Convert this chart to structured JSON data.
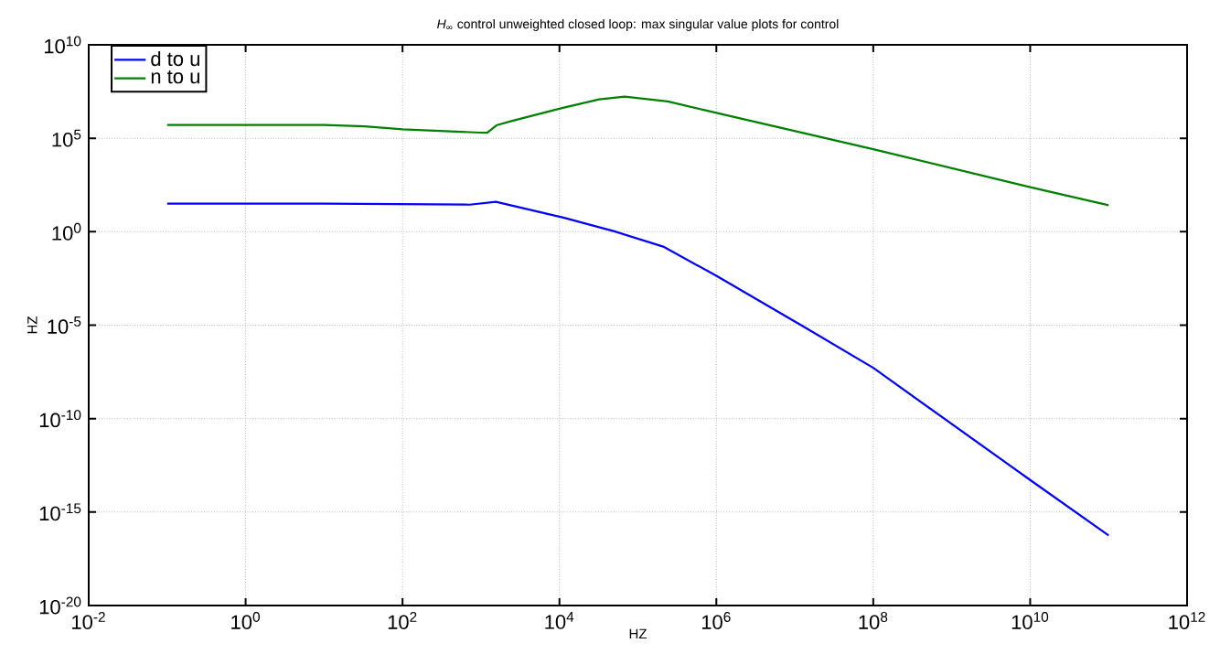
{
  "chart_data": {
    "type": "line",
    "title": "*H*$_{∞}$ control unweighted closed loop: max singular value plots for control",
    "xlabel": "HZ",
    "ylabel": "HZ",
    "log": "xy",
    "grid": true,
    "legend": "top left",
    "marker": "none",
    "line_style": "solid",
    "xlim": [
      0.01,
      1000000000000.0
    ],
    "ylim": [
      1e-20,
      10000000000.0
    ],
    "xticks": [
      {
        "value": 0.01,
        "label": "10$^{-2}$"
      },
      {
        "value": 1,
        "label": "10$^{0}$"
      },
      {
        "value": 100,
        "label": "10$^{2}$"
      },
      {
        "value": 10000.0,
        "label": "10$^{4}$"
      },
      {
        "value": 1000000.0,
        "label": "10$^{6}$"
      },
      {
        "value": 100000000.0,
        "label": "10$^{8}$"
      },
      {
        "value": 10000000000.0,
        "label": "10$^{10}$"
      },
      {
        "value": 1000000000000.0,
        "label": "10$^{12}$"
      }
    ],
    "yticks": [
      {
        "value": 1e-20,
        "label": "10$^{-20}$"
      },
      {
        "value": 1e-15,
        "label": "10$^{-15}$"
      },
      {
        "value": 1e-10,
        "label": "10$^{-10}$"
      },
      {
        "value": 1e-05,
        "label": "10$^{-5}$"
      },
      {
        "value": 1,
        "label": "10$^{0}$"
      },
      {
        "value": 100000.0,
        "label": "10$^{5}$"
      },
      {
        "value": 10000000000.0,
        "label": "10$^{10}$"
      }
    ],
    "series": [
      {
        "name": "d to u",
        "color": "#0000ff",
        "x": [
          0.1,
          10,
          720,
          1550,
          11500,
          50000,
          210000,
          1000000.0,
          12600000.0,
          100000000.0,
          10000000000.0,
          100000000000.0
        ],
        "values": [
          32,
          32,
          28,
          40,
          5.5,
          1.05,
          0.16,
          0.0044,
          8.9e-06,
          5.2e-08,
          5.2e-14,
          5.6e-17
        ]
      },
      {
        "name": "n to u",
        "color": "#008000",
        "x": [
          0.1,
          10,
          33,
          100,
          1000,
          1200,
          1600,
          2500,
          10500,
          32000,
          68000,
          240000,
          1000000.0,
          100000000.0,
          10000000000.0,
          100000000000.0
        ],
        "values": [
          510000,
          510000,
          430000,
          300000,
          200000,
          195000,
          510000,
          850000,
          4000000.0,
          12000000.0,
          17000000.0,
          9300000.0,
          2300000.0,
          26000,
          240,
          26
        ]
      }
    ]
  }
}
